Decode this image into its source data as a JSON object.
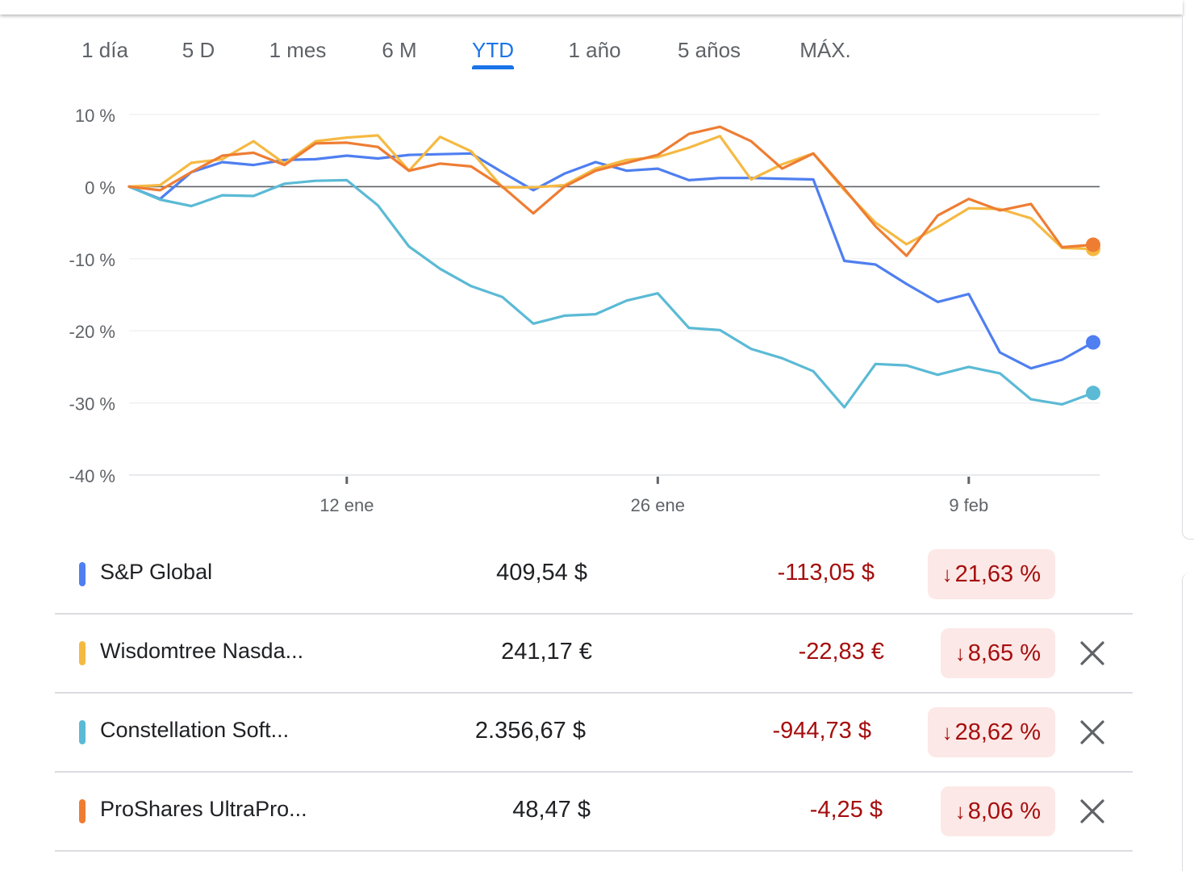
{
  "tabs": [
    {
      "label": "1 día"
    },
    {
      "label": "5 D"
    },
    {
      "label": "1 mes"
    },
    {
      "label": "6 M"
    },
    {
      "label": "YTD"
    },
    {
      "label": "1 año"
    },
    {
      "label": "5 años"
    },
    {
      "label": "MÁX."
    }
  ],
  "active_tab": "YTD",
  "chart_data": {
    "type": "line",
    "yticks": [
      "10 %",
      "0 %",
      "-10 %",
      "-20 %",
      "-30 %",
      "-40 %"
    ],
    "ylim": [
      -40,
      10
    ],
    "y_unit": "%",
    "grid": true,
    "xticks": [
      {
        "label": "12 ene",
        "index": 7
      },
      {
        "label": "26 ene",
        "index": 17
      },
      {
        "label": "9 feb",
        "index": 27
      }
    ],
    "x_count": 32,
    "series": [
      {
        "name": "S&P Global",
        "color": "#4f7ff0",
        "values": [
          0,
          -1.7,
          2,
          3.4,
          3,
          3.7,
          3.8,
          4.3,
          3.9,
          4.4,
          4.5,
          4.6,
          2,
          -0.5,
          1.8,
          3.4,
          2.2,
          2.5,
          0.9,
          1.2,
          1.2,
          1.1,
          1,
          -10.3,
          -10.8,
          -13.5,
          -16,
          -14.9,
          -23,
          -25.2,
          -24,
          -21.6
        ]
      },
      {
        "name": "Wisdomtree Nasda...",
        "color": "#f5b942",
        "values": [
          0,
          0.2,
          3.3,
          3.8,
          6.3,
          3.2,
          6.3,
          6.8,
          7.1,
          2.2,
          6.9,
          4.9,
          -0.1,
          -0.1,
          0.2,
          2.5,
          3.7,
          4.1,
          5.4,
          7,
          1,
          3.1,
          4.6,
          -0.5,
          -5,
          -8,
          -5.6,
          -3,
          -3.1,
          -4.4,
          -8.5,
          -8.65
        ]
      },
      {
        "name": "Constellation Soft...",
        "color": "#5bbad5",
        "values": [
          0,
          -1.8,
          -2.7,
          -1.2,
          -1.3,
          0.4,
          0.8,
          0.9,
          -2.6,
          -8.3,
          -11.4,
          -13.8,
          -15.3,
          -19,
          -17.9,
          -17.7,
          -15.8,
          -14.8,
          -19.6,
          -19.9,
          -22.5,
          -23.8,
          -25.6,
          -30.6,
          -24.6,
          -24.8,
          -26.1,
          -25,
          -25.9,
          -29.5,
          -30.2,
          -28.62
        ]
      },
      {
        "name": "ProShares UltraPro...",
        "color": "#ee7d33",
        "values": [
          0,
          -0.5,
          2,
          4.3,
          4.7,
          3,
          6,
          6.1,
          5.5,
          2.2,
          3.2,
          2.8,
          0,
          -3.7,
          0,
          2.2,
          3.3,
          4.4,
          7.3,
          8.3,
          6.3,
          2.5,
          4.6,
          -0.3,
          -5.5,
          -9.6,
          -4,
          -1.7,
          -3.3,
          -2.4,
          -8.4,
          -8.06
        ]
      }
    ]
  },
  "rows": [
    {
      "name": "S&P Global",
      "color": "#4f7ff0",
      "price": "409,54 $",
      "change": "-113,05 $",
      "percent": "21,63 %",
      "removable": false
    },
    {
      "name": "Wisdomtree Nasda...",
      "color": "#f5b942",
      "price": "241,17 €",
      "change": "-22,83 €",
      "percent": "8,65 %",
      "removable": true
    },
    {
      "name": "Constellation Soft...",
      "color": "#5bbad5",
      "price": "2.356,67 $",
      "change": "-944,73 $",
      "percent": "28,62 %",
      "removable": true
    },
    {
      "name": "ProShares UltraPro...",
      "color": "#ee7d33",
      "price": "48,47 $",
      "change": "-4,25 $",
      "percent": "8,06 %",
      "removable": true
    }
  ],
  "icons": {
    "arrow": "arrow-down-icon",
    "remove": "close-icon"
  },
  "down_arrow_glyph": "↓"
}
